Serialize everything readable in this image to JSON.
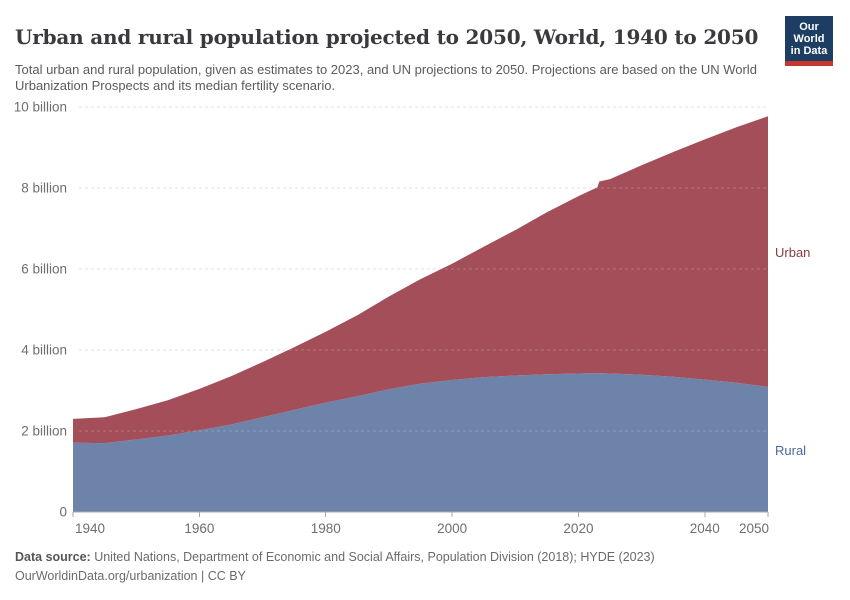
{
  "header": {
    "title": "Urban and rural population projected to 2050, World, 1940 to 2050",
    "subtitle": "Total urban and rural population, given as estimates to 2023, and UN projections to 2050. Projections are based on the UN World Urbanization Prospects and its median fertility scenario.",
    "logo": {
      "line1": "Our World",
      "line2": "in Data",
      "bg_color": "#1d3d63",
      "accent_color": "#c4362e"
    }
  },
  "chart_data": {
    "type": "area",
    "stacked": true,
    "title": "Urban and rural population projected to 2050, World, 1940 to 2050",
    "x": [
      1940,
      1945,
      1950,
      1955,
      1960,
      1965,
      1970,
      1975,
      1980,
      1985,
      1990,
      1995,
      2000,
      2005,
      2010,
      2015,
      2020,
      2023,
      2023.3,
      2025,
      2030,
      2035,
      2040,
      2045,
      2050
    ],
    "series": [
      {
        "name": "Rural",
        "color": "#6d83aa",
        "label_color": "#4c6a9c",
        "values": [
          1.71,
          1.7,
          1.79,
          1.89,
          2.02,
          2.16,
          2.34,
          2.52,
          2.7,
          2.86,
          3.03,
          3.17,
          3.26,
          3.33,
          3.37,
          3.4,
          3.42,
          3.43,
          3.43,
          3.42,
          3.39,
          3.34,
          3.27,
          3.19,
          3.09
        ]
      },
      {
        "name": "Urban",
        "color": "#a44e59",
        "label_color": "#8e3a44",
        "values": [
          0.59,
          0.64,
          0.75,
          0.87,
          1.02,
          1.19,
          1.36,
          1.55,
          1.75,
          2.0,
          2.29,
          2.58,
          2.87,
          3.22,
          3.59,
          4.0,
          4.38,
          4.59,
          4.73,
          4.8,
          5.17,
          5.55,
          5.93,
          6.31,
          6.68
        ]
      }
    ],
    "xlim": [
      1940,
      2050
    ],
    "ylim": [
      0,
      10
    ],
    "xticks": [
      1940,
      1960,
      1980,
      2000,
      2020,
      2040,
      2050
    ],
    "yticks": [
      {
        "value": 0,
        "label": "0"
      },
      {
        "value": 2,
        "label": "2 billion"
      },
      {
        "value": 4,
        "label": "4 billion"
      },
      {
        "value": 6,
        "label": "6 billion"
      },
      {
        "value": 8,
        "label": "8 billion"
      },
      {
        "value": 10,
        "label": "10 billion"
      }
    ],
    "grid": "dashed horizontal",
    "legend_position": "right edge entity labels",
    "notes": "Estimates to 2023; small step up at 2023 where UN projections begin"
  },
  "footer": {
    "source_label": "Data source:",
    "source_text": " United Nations, Department of Economic and Social Affairs, Population Division (2018); HYDE (2023)",
    "link_line": "OurWorldinData.org/urbanization | CC BY"
  }
}
